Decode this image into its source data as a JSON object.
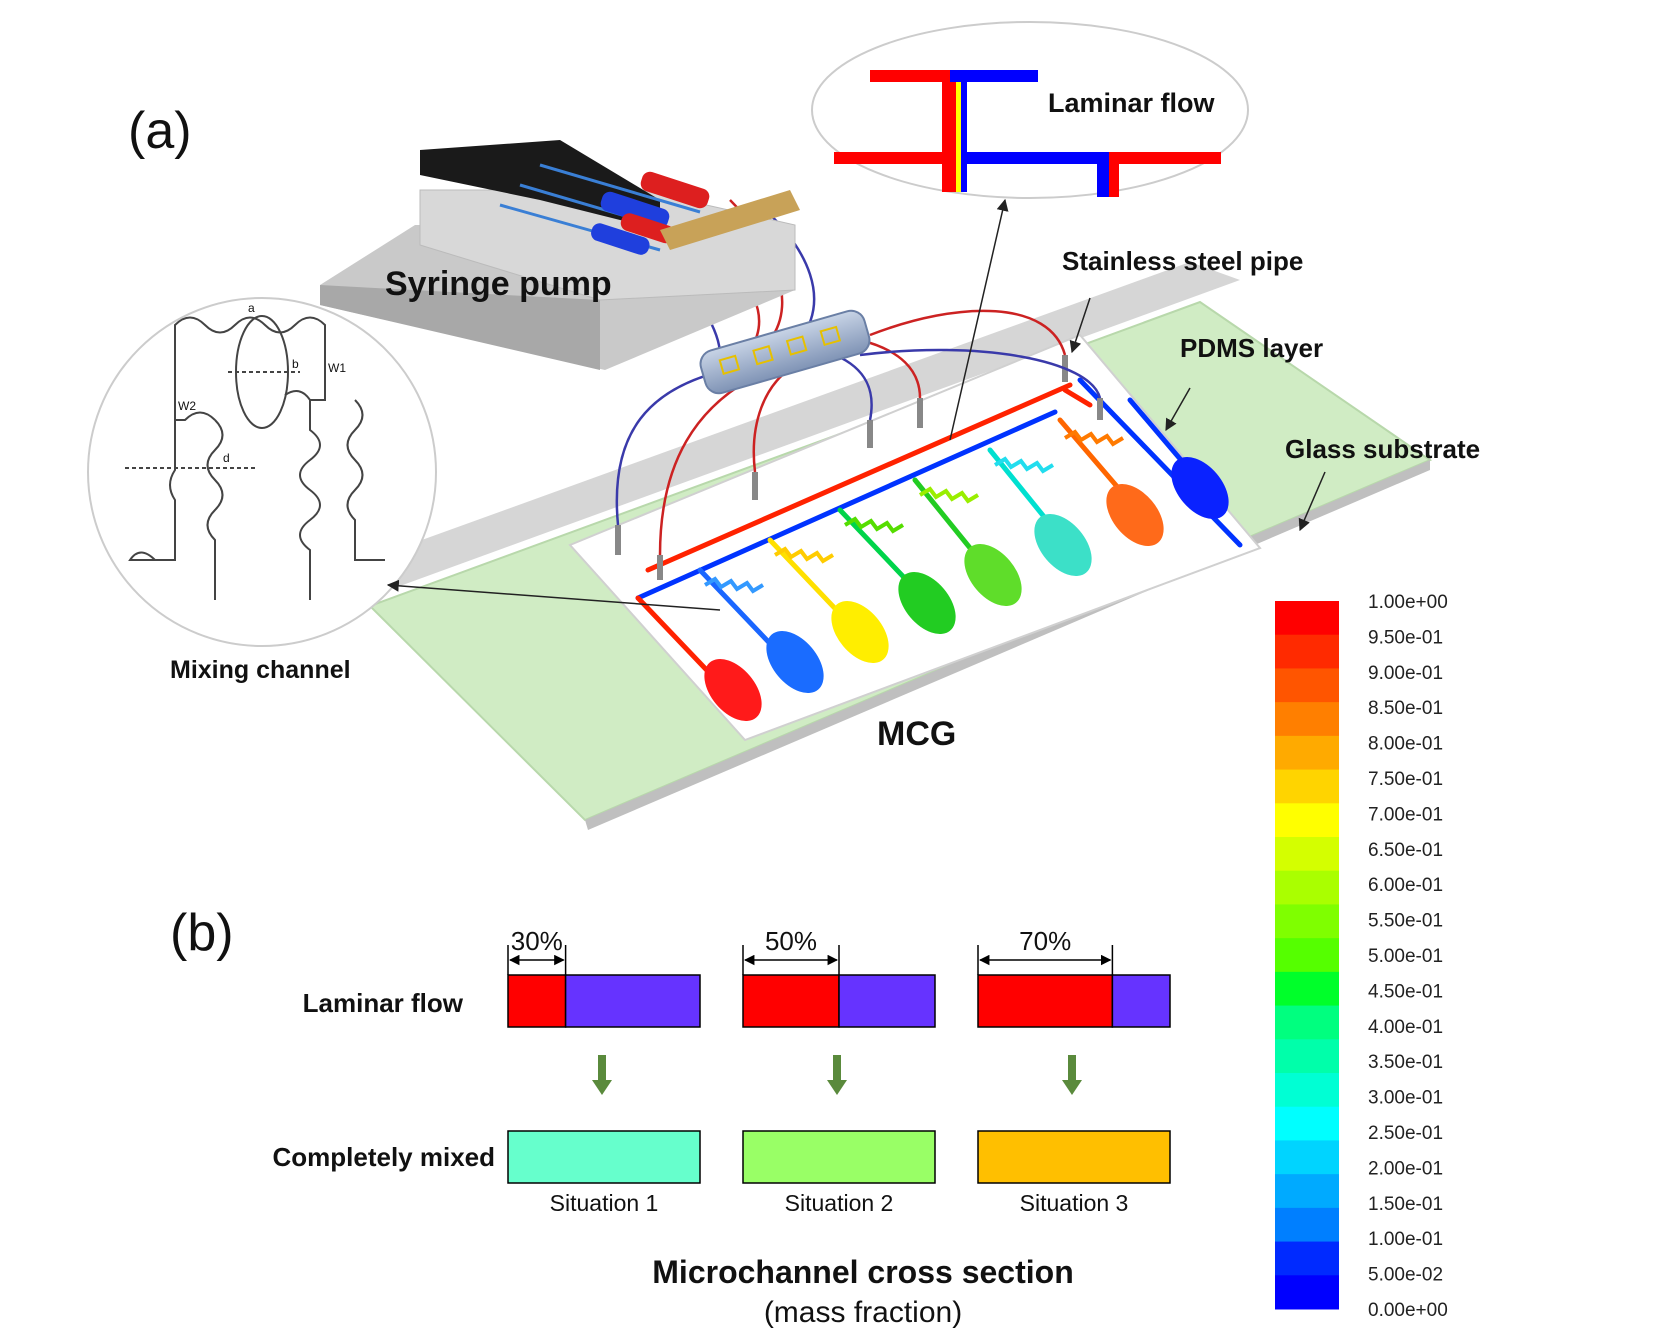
{
  "panel_a": {
    "label": "(a)",
    "callouts": {
      "syringe_pump": "Syringe pump",
      "laminar_flow_zoom": "Laminar flow",
      "stainless_steel_pipe": "Stainless steel pipe",
      "pdms_layer": "PDMS layer",
      "glass_substrate": "Glass substrate",
      "mixing_channel": "Mixing channel",
      "device_name": "MCG"
    },
    "mixing_channel_dims": [
      "a",
      "b",
      "W1",
      "W2",
      "d"
    ]
  },
  "panel_b": {
    "label": "(b)",
    "row_labels": {
      "laminar": "Laminar flow",
      "mixed": "Completely mixed"
    },
    "situations": [
      {
        "name": "Situation 1",
        "red_fraction_label": "30%",
        "red_fraction": 0.3,
        "mixed_color": "#66ffcc"
      },
      {
        "name": "Situation 2",
        "red_fraction_label": "50%",
        "red_fraction": 0.5,
        "mixed_color": "#99ff66"
      },
      {
        "name": "Situation 3",
        "red_fraction_label": "70%",
        "red_fraction": 0.7,
        "mixed_color": "#ffbf00"
      }
    ],
    "caption_title": "Microchannel cross section",
    "caption_sub": "(mass fraction)",
    "colors": {
      "red": "#ff0000",
      "blue": "#6633ff",
      "arrow": "#5a8a3c"
    }
  },
  "colorbar": {
    "labels": [
      "1.00e+00",
      "9.50e-01",
      "9.00e-01",
      "8.50e-01",
      "8.00e-01",
      "7.50e-01",
      "7.00e-01",
      "6.50e-01",
      "6.00e-01",
      "5.50e-01",
      "5.00e-01",
      "4.50e-01",
      "4.00e-01",
      "3.50e-01",
      "3.00e-01",
      "2.50e-01",
      "2.00e-01",
      "1.50e-01",
      "1.00e-01",
      "5.00e-02",
      "0.00e+00"
    ],
    "colors": [
      "#ff0000",
      "#ff2a00",
      "#ff5500",
      "#ff7f00",
      "#ffaa00",
      "#ffd400",
      "#ffff00",
      "#d4ff00",
      "#aaff00",
      "#7fff00",
      "#55ff00",
      "#00ff2a",
      "#00ff7f",
      "#00ffaa",
      "#00ffd4",
      "#00ffff",
      "#00d4ff",
      "#00aaff",
      "#007fff",
      "#002aff",
      "#0000ff"
    ]
  }
}
